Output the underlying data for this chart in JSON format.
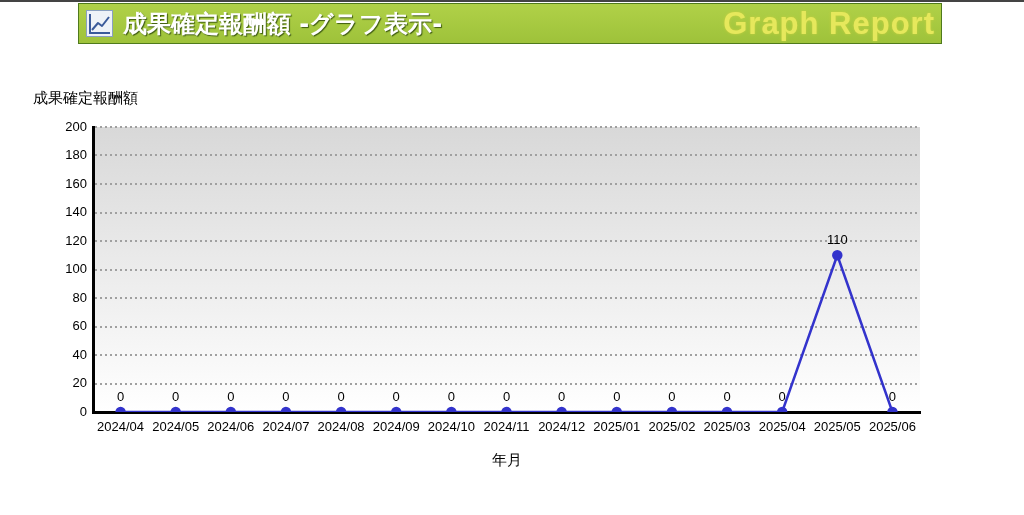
{
  "chart_data": {
    "type": "line",
    "title": "成果確定報酬額 -グラフ表示-",
    "subtitle": "Graph Report",
    "ylabel": "成果確定報酬額",
    "xlabel": "年月",
    "categories": [
      "2024/04",
      "2024/05",
      "2024/06",
      "2024/07",
      "2024/08",
      "2024/09",
      "2024/10",
      "2024/11",
      "2024/12",
      "2025/01",
      "2025/02",
      "2025/03",
      "2025/04",
      "2025/05",
      "2025/06"
    ],
    "series": [
      {
        "color": "#3333cc",
        "values": [
          0,
          0,
          0,
          0,
          0,
          0,
          0,
          0,
          0,
          0,
          0,
          0,
          0,
          110,
          0
        ]
      }
    ],
    "ylim": [
      0,
      200
    ],
    "yticks": [
      0,
      20,
      40,
      60,
      80,
      100,
      120,
      140,
      160,
      180,
      200
    ],
    "grid": "y",
    "legend": false,
    "data_labels": true,
    "marker": "circle",
    "line_style": "solid"
  }
}
